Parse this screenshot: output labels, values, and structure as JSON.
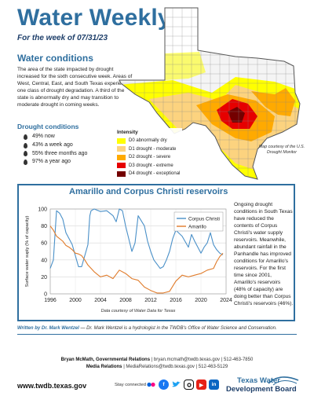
{
  "header": {
    "title": "Water Weekly",
    "subtitle": "For the week of 07/31/23"
  },
  "water_conditions": {
    "heading": "Water conditions",
    "body": "The area of the state impacted by drought increased for the sixth consecutive week. Areas of West, Central, East, and South Texas experienced one class of drought degradation. A third of the state is abnormally dry and may transition to moderate drought in coming weeks.",
    "drought_heading": "Drought conditions",
    "drought_items": [
      "49% now",
      "43% a week ago",
      "55% three months ago",
      "97% a year ago"
    ]
  },
  "map": {
    "legend_title": "Intensity",
    "legend": [
      {
        "label": "D0  abnormally dry",
        "color": "#ffff00"
      },
      {
        "label": "D1  drought - moderate",
        "color": "#fcd37f"
      },
      {
        "label": "D2  drought - severe",
        "color": "#ffaa00"
      },
      {
        "label": "D3  drought - extreme",
        "color": "#e60000"
      },
      {
        "label": "D4  drought - exceptional",
        "color": "#730000"
      }
    ],
    "credit": "Map courtesy of the U.S. Drought Monitor"
  },
  "reservoirs": {
    "title": "Amarillo and Corpus Christi reservoirs",
    "body": "Ongoing drought conditions in South Texas have reduced the contents of Corpus Christi's water supply reservoirs. Meanwhile, abundant rainfall in the Panhandle has improved conditions for Amarillo's reservoirs. For the first time since 2001, Amarillo's reservoirs (48% of capacity) are doing better than Corpus Christi's reservoirs (46%).",
    "credit": "Data courtesy of Water Data for Texas"
  },
  "chart_data": {
    "type": "line",
    "title": "",
    "xlabel": "",
    "ylabel": "Surface water suply (% of capacity)",
    "xlim": [
      1996,
      2024
    ],
    "ylim": [
      0,
      100
    ],
    "x_ticks": [
      "1996",
      "2000",
      "2004",
      "2008",
      "2012",
      "2016",
      "2020",
      "2024"
    ],
    "y_ticks": [
      "0",
      "20",
      "40",
      "60",
      "80",
      "100"
    ],
    "grid": true,
    "legend_position": "top-right",
    "series": [
      {
        "name": "Corpus Christi",
        "color": "#4a90c8",
        "x": [
          1996,
          1996.5,
          1997,
          1997.5,
          1998,
          1998.5,
          1999,
          1999.5,
          2000,
          2000.5,
          2001,
          2001.5,
          2002,
          2002.3,
          2002.5,
          2003,
          2004,
          2005,
          2006,
          2006.5,
          2007,
          2007.5,
          2008,
          2008.5,
          2009,
          2009.5,
          2010,
          2011,
          2011.5,
          2012,
          2012.5,
          2013,
          2013.5,
          2014,
          2014.5,
          2015,
          2015.5,
          2016,
          2017,
          2018,
          2018.5,
          2019,
          2019.5,
          2020,
          2020.5,
          2021,
          2021.5,
          2022,
          2022.5,
          2023,
          2023.5
        ],
        "values": [
          30,
          40,
          98,
          95,
          88,
          72,
          65,
          58,
          45,
          32,
          32,
          45,
          58,
          92,
          98,
          100,
          97,
          98,
          92,
          85,
          100,
          98,
          80,
          65,
          50,
          60,
          92,
          80,
          62,
          50,
          40,
          35,
          30,
          32,
          40,
          50,
          65,
          75,
          68,
          55,
          70,
          62,
          55,
          48,
          55,
          60,
          72,
          58,
          52,
          48,
          46
        ]
      },
      {
        "name": "Amarillo",
        "color": "#e07b2a",
        "x": [
          1996,
          1996.5,
          1997,
          1997.5,
          1998,
          1998.5,
          1999,
          1999.5,
          2000,
          2000.5,
          2001,
          2001.5,
          2002,
          2003,
          2004,
          2005,
          2006,
          2007,
          2008,
          2009,
          2010,
          2011,
          2012,
          2013,
          2014,
          2015,
          2016,
          2017,
          2018,
          2019,
          2020,
          2021,
          2022,
          2022.5,
          2023,
          2023.5
        ],
        "values": [
          80,
          75,
          68,
          65,
          62,
          57,
          55,
          52,
          48,
          47,
          45,
          40,
          34,
          26,
          20,
          22,
          18,
          28,
          24,
          18,
          16,
          8,
          4,
          1,
          1,
          3,
          15,
          22,
          20,
          22,
          24,
          28,
          30,
          38,
          44,
          48
        ]
      }
    ]
  },
  "footer": {
    "author_name": "Written by Dr. Mark Wentzel",
    "author_bio": " — Dr. Mark Wentzel is a hydrologist in the TWDB's Office of Water Science and Conservation.",
    "contact1_name": "Bryan McMath, Governmental Relations",
    "contact1_info": "  |  bryan.mcmath@twdb.texas.gov  |  512-463-7850",
    "contact2_name": "Media Relations",
    "contact2_info": "  |  MediaRelations@twdb.texas.gov  |  512-463-5129",
    "website": "www.twdb.texas.gov",
    "stay_connected": "Stay connected:",
    "brand_line1": "Texas Water",
    "brand_line2": "Development Board"
  }
}
